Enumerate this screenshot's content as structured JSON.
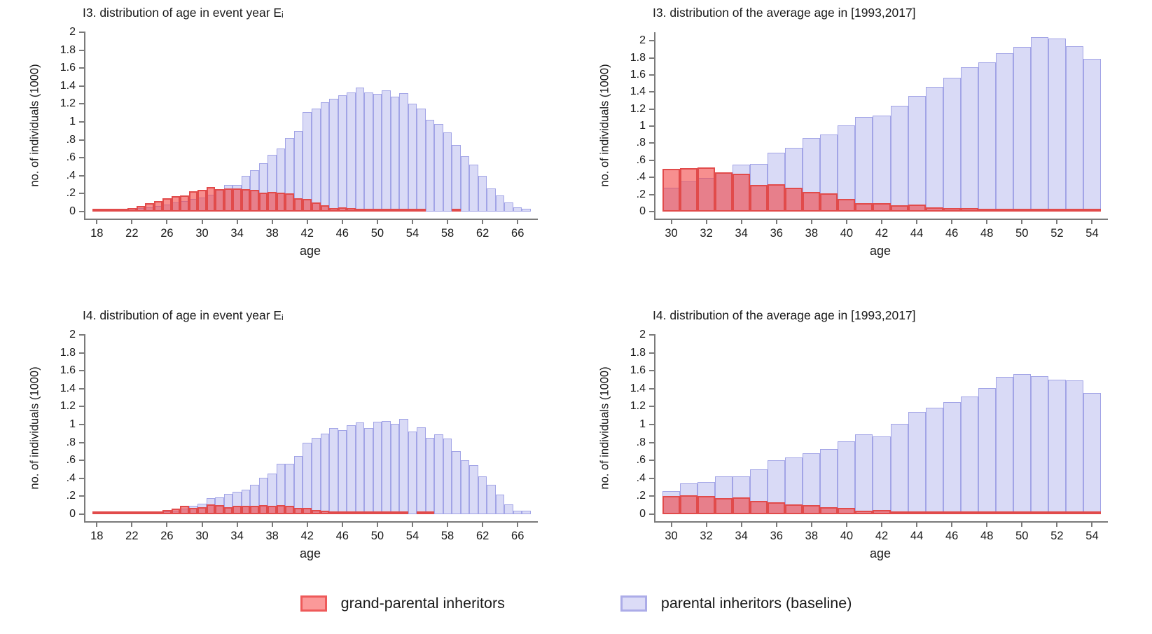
{
  "colors": {
    "background": "#ffffff",
    "axis": "#7a7a7a",
    "text": "#1a1a1a",
    "parental_fill": "#d9daf6",
    "parental_border": "#a2a4e6",
    "grandparental_fill": "rgba(242,62,62,0.58)",
    "grandparental_border": "#e14b4b"
  },
  "legend": {
    "items": [
      {
        "key": "grandparental",
        "label": "grand-parental inheritors",
        "swatch_fill": "#fb9999",
        "swatch_border": "#ee5a5a"
      },
      {
        "key": "parental",
        "label": "parental inheritors (baseline)",
        "swatch_fill": "#dcdcf7",
        "swatch_border": "#acace8"
      }
    ],
    "position": "bottom-center-shared"
  },
  "chart_data": [
    {
      "type": "bar",
      "title": "I3. distribution of age in event year Eᵢ",
      "xlabel": "age",
      "ylabel": "no. of individuals (1000)",
      "ylim": [
        0,
        2
      ],
      "yticks": [
        0,
        0.2,
        0.4,
        0.6,
        0.8,
        1,
        1.2,
        1.4,
        1.6,
        1.8,
        2
      ],
      "ytick_labels": [
        "0",
        ".2",
        ".4",
        ".6",
        ".8",
        "1",
        "1.2",
        "1.4",
        "1.6",
        "1.8",
        "2"
      ],
      "xlim": [
        17.5,
        67.5
      ],
      "xticks": [
        18,
        22,
        26,
        30,
        34,
        38,
        42,
        46,
        50,
        54,
        58,
        62,
        66
      ],
      "bar_width": 1,
      "grid": false,
      "categories": [
        18,
        19,
        20,
        21,
        22,
        23,
        24,
        25,
        26,
        27,
        28,
        29,
        30,
        31,
        32,
        33,
        34,
        35,
        36,
        37,
        38,
        39,
        40,
        41,
        42,
        43,
        44,
        45,
        46,
        47,
        48,
        49,
        50,
        51,
        52,
        53,
        54,
        55,
        56,
        57,
        58,
        59,
        60,
        61,
        62,
        63,
        64,
        65,
        66,
        67
      ],
      "series": [
        {
          "key": "parental",
          "name": "parental inheritors (baseline)",
          "values": [
            0.01,
            0.01,
            0.02,
            0.02,
            0.03,
            0.04,
            0.05,
            0.06,
            0.08,
            0.1,
            0.12,
            0.14,
            0.16,
            0.19,
            0.24,
            0.3,
            0.3,
            0.4,
            0.46,
            0.54,
            0.63,
            0.7,
            0.82,
            0.9,
            1.11,
            1.15,
            1.22,
            1.26,
            1.3,
            1.33,
            1.38,
            1.33,
            1.31,
            1.35,
            1.28,
            1.32,
            1.2,
            1.15,
            1.02,
            0.98,
            0.88,
            0.74,
            0.62,
            0.52,
            0.4,
            0.26,
            0.18,
            0.1,
            0.05,
            0.03
          ]
        },
        {
          "key": "grandparental",
          "name": "grand-parental inheritors",
          "values": [
            0.01,
            0.01,
            0.02,
            0.03,
            0.04,
            0.06,
            0.09,
            0.12,
            0.15,
            0.17,
            0.18,
            0.23,
            0.24,
            0.27,
            0.25,
            0.26,
            0.26,
            0.25,
            0.24,
            0.21,
            0.22,
            0.21,
            0.2,
            0.15,
            0.14,
            0.1,
            0.07,
            0.04,
            0.05,
            0.04,
            0.03,
            0.02,
            0.01,
            0.01,
            0.01,
            0.01,
            0.01,
            0.01,
            0,
            0,
            0,
            0.01,
            0,
            0,
            0,
            0,
            0,
            0,
            0,
            0
          ]
        }
      ]
    },
    {
      "type": "bar",
      "title": "I3. distribution of the average age in [1993,2017]",
      "xlabel": "age",
      "ylabel": "no. of individuals (1000)",
      "ylim": [
        0,
        2.1
      ],
      "yticks": [
        0,
        0.2,
        0.4,
        0.6,
        0.8,
        1,
        1.2,
        1.4,
        1.6,
        1.8,
        2
      ],
      "ytick_labels": [
        "0",
        ".2",
        ".4",
        ".6",
        ".8",
        "1",
        "1.2",
        "1.4",
        "1.6",
        "1.8",
        "2"
      ],
      "xlim": [
        29.5,
        54.5
      ],
      "xticks": [
        30,
        32,
        34,
        36,
        38,
        40,
        42,
        44,
        46,
        48,
        50,
        52,
        54
      ],
      "bar_width": 1,
      "grid": false,
      "categories": [
        30,
        31,
        32,
        33,
        34,
        35,
        36,
        37,
        38,
        39,
        40,
        41,
        42,
        43,
        44,
        45,
        46,
        47,
        48,
        49,
        50,
        51,
        52,
        53,
        54
      ],
      "series": [
        {
          "key": "parental",
          "name": "parental inheritors (baseline)",
          "values": [
            0.28,
            0.35,
            0.39,
            0.46,
            0.55,
            0.56,
            0.69,
            0.75,
            0.86,
            0.9,
            1.01,
            1.11,
            1.12,
            1.24,
            1.35,
            1.46,
            1.57,
            1.69,
            1.75,
            1.85,
            1.93,
            2.04,
            2.03,
            1.94,
            1.79
          ]
        },
        {
          "key": "grandparental",
          "name": "grand-parental inheritors",
          "values": [
            0.5,
            0.51,
            0.52,
            0.46,
            0.44,
            0.31,
            0.32,
            0.28,
            0.23,
            0.21,
            0.15,
            0.1,
            0.1,
            0.07,
            0.08,
            0.05,
            0.04,
            0.04,
            0.02,
            0.03,
            0.02,
            0.02,
            0.02,
            0.01,
            0.02
          ]
        }
      ]
    },
    {
      "type": "bar",
      "title": "I4. distribution of age in event year Eᵢ",
      "xlabel": "age",
      "ylabel": "no. of individuals (1000)",
      "ylim": [
        0,
        2
      ],
      "yticks": [
        0,
        0.2,
        0.4,
        0.6,
        0.8,
        1,
        1.2,
        1.4,
        1.6,
        1.8,
        2
      ],
      "ytick_labels": [
        "0",
        ".2",
        ".4",
        ".6",
        ".8",
        "1",
        "1.2",
        "1.4",
        "1.6",
        "1.8",
        "2"
      ],
      "xlim": [
        17.5,
        67.5
      ],
      "xticks": [
        18,
        22,
        26,
        30,
        34,
        38,
        42,
        46,
        50,
        54,
        58,
        62,
        66
      ],
      "bar_width": 1,
      "grid": false,
      "categories": [
        18,
        19,
        20,
        21,
        22,
        23,
        24,
        25,
        26,
        27,
        28,
        29,
        30,
        31,
        32,
        33,
        34,
        35,
        36,
        37,
        38,
        39,
        40,
        41,
        42,
        43,
        44,
        45,
        46,
        47,
        48,
        49,
        50,
        51,
        52,
        53,
        54,
        55,
        56,
        57,
        58,
        59,
        60,
        61,
        62,
        63,
        64,
        65,
        66,
        67
      ],
      "series": [
        {
          "key": "parental",
          "name": "parental inheritors (baseline)",
          "values": [
            0.01,
            0.01,
            0.01,
            0.01,
            0.02,
            0.02,
            0.02,
            0.03,
            0.03,
            0.04,
            0.06,
            0.09,
            0.12,
            0.18,
            0.19,
            0.23,
            0.25,
            0.27,
            0.33,
            0.41,
            0.45,
            0.56,
            0.56,
            0.65,
            0.8,
            0.85,
            0.9,
            0.96,
            0.94,
            0.99,
            1.02,
            0.96,
            1.03,
            1.04,
            1.01,
            1.06,
            0.92,
            0.97,
            0.85,
            0.89,
            0.84,
            0.7,
            0.6,
            0.55,
            0.42,
            0.33,
            0.22,
            0.11,
            0.04,
            0.04
          ]
        },
        {
          "key": "grandparental",
          "name": "grand-parental inheritors",
          "values": [
            0.01,
            0.01,
            0.01,
            0.01,
            0.02,
            0.02,
            0.03,
            0.03,
            0.05,
            0.06,
            0.09,
            0.07,
            0.08,
            0.11,
            0.1,
            0.08,
            0.09,
            0.09,
            0.09,
            0.1,
            0.09,
            0.1,
            0.09,
            0.07,
            0.07,
            0.05,
            0.04,
            0.03,
            0.02,
            0.01,
            0.01,
            0.01,
            0.01,
            0.01,
            0.01,
            0.01,
            0,
            0.01,
            0.01,
            0,
            0,
            0,
            0,
            0,
            0,
            0,
            0,
            0,
            0,
            0
          ]
        }
      ]
    },
    {
      "type": "bar",
      "title": "I4. distribution of the average age in [1993,2017]",
      "xlabel": "age",
      "ylabel": "no. of individuals (1000)",
      "ylim": [
        0,
        2
      ],
      "yticks": [
        0,
        0.2,
        0.4,
        0.6,
        0.8,
        1,
        1.2,
        1.4,
        1.6,
        1.8,
        2
      ],
      "ytick_labels": [
        "0",
        ".2",
        ".4",
        ".6",
        ".8",
        "1",
        "1.2",
        "1.4",
        "1.6",
        "1.8",
        "2"
      ],
      "xlim": [
        29.5,
        54.5
      ],
      "xticks": [
        30,
        32,
        34,
        36,
        38,
        40,
        42,
        44,
        46,
        48,
        50,
        52,
        54
      ],
      "bar_width": 1,
      "grid": false,
      "categories": [
        30,
        31,
        32,
        33,
        34,
        35,
        36,
        37,
        38,
        39,
        40,
        41,
        42,
        43,
        44,
        45,
        46,
        47,
        48,
        49,
        50,
        51,
        52,
        53,
        54
      ],
      "series": [
        {
          "key": "parental",
          "name": "parental inheritors (baseline)",
          "values": [
            0.26,
            0.34,
            0.36,
            0.42,
            0.42,
            0.5,
            0.6,
            0.63,
            0.68,
            0.73,
            0.81,
            0.89,
            0.87,
            1.01,
            1.14,
            1.19,
            1.25,
            1.31,
            1.41,
            1.53,
            1.56,
            1.54,
            1.5,
            1.49,
            1.35
          ]
        },
        {
          "key": "grandparental",
          "name": "grand-parental inheritors",
          "values": [
            0.2,
            0.21,
            0.2,
            0.18,
            0.19,
            0.15,
            0.13,
            0.11,
            0.1,
            0.08,
            0.07,
            0.04,
            0.05,
            0.03,
            0.02,
            0.02,
            0.01,
            0.01,
            0.01,
            0.01,
            0.01,
            0.01,
            0.01,
            0.01,
            0.01
          ]
        }
      ]
    }
  ]
}
